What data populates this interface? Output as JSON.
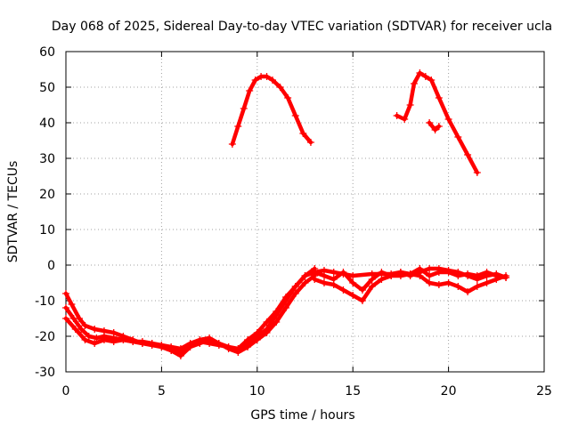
{
  "chart_data": {
    "type": "scatter",
    "title": "Day 068 of 2025, Sidereal Day-to-day VTEC variation (SDTVAR) for receiver ucla",
    "xlabel": "GPS time / hours",
    "ylabel": "SDTVAR / TECUs",
    "xlim": [
      0,
      25
    ],
    "ylim": [
      -30,
      60
    ],
    "xticks": [
      0,
      5,
      10,
      15,
      20,
      25
    ],
    "yticks": [
      -30,
      -20,
      -10,
      0,
      10,
      20,
      30,
      40,
      50,
      60
    ],
    "grid": true,
    "marker": "+",
    "color": "#ff0000",
    "series": [
      {
        "name": "track-a",
        "x": [
          0,
          0.3,
          0.7,
          1,
          1.5,
          2,
          2.5,
          3,
          3.5,
          4,
          4.5,
          5,
          5.5,
          6,
          6.5,
          7,
          7.5,
          8,
          8.5,
          9,
          9.5,
          10,
          10.5,
          11,
          11.5,
          12,
          12.5,
          13
        ],
        "y": [
          -8,
          -11,
          -15,
          -17,
          -18,
          -18.5,
          -19,
          -20,
          -21,
          -22,
          -22,
          -22.5,
          -23,
          -23.5,
          -22,
          -21,
          -20.5,
          -22,
          -23,
          -23.5,
          -21,
          -19,
          -16,
          -13,
          -9,
          -6,
          -3,
          -1
        ]
      },
      {
        "name": "track-b",
        "x": [
          0,
          0.4,
          0.8,
          1.2,
          1.6,
          2,
          2.5,
          3,
          3.5,
          4,
          4.5,
          5,
          5.5,
          6,
          6.5,
          7,
          7.5,
          8,
          8.5,
          9,
          9.5,
          10,
          10.5,
          11,
          11.5,
          12,
          12.5,
          13
        ],
        "y": [
          -12,
          -15,
          -18,
          -20,
          -20.5,
          -20,
          -20.5,
          -21,
          -21.5,
          -22,
          -22.5,
          -23,
          -24,
          -24.5,
          -22.5,
          -21.5,
          -22,
          -22.5,
          -23,
          -24,
          -22,
          -20,
          -18,
          -14,
          -10,
          -6,
          -3,
          -2
        ]
      },
      {
        "name": "track-c",
        "x": [
          0,
          0.5,
          1,
          1.5,
          2,
          2.5,
          3,
          3.5,
          4,
          4.5,
          5,
          5.5,
          6,
          6.5,
          7,
          7.5,
          8,
          8.5,
          9,
          9.5,
          10,
          10.5,
          11,
          11.5,
          12,
          12.5,
          13
        ],
        "y": [
          -15,
          -18,
          -21,
          -22,
          -21,
          -21.5,
          -21,
          -21.5,
          -21.5,
          -22,
          -23,
          -24,
          -25.5,
          -23,
          -22,
          -21,
          -22,
          -23.5,
          -24.5,
          -23,
          -21,
          -19,
          -16,
          -12,
          -8,
          -5,
          -3
        ]
      },
      {
        "name": "track-d",
        "x": [
          13,
          13.5,
          14,
          14.5,
          15,
          15.5,
          16,
          16.5,
          17,
          17.5,
          18,
          18.5,
          19,
          19.5,
          20,
          20.5,
          21,
          21.5,
          22,
          22.5,
          23
        ],
        "y": [
          -2,
          -3,
          -4,
          -2,
          -5,
          -7,
          -4,
          -2,
          -3,
          -2,
          -2.5,
          -1,
          -3,
          -2,
          -2,
          -3,
          -2.5,
          -3,
          -2,
          -3,
          -3.5
        ]
      },
      {
        "name": "track-e",
        "x": [
          13,
          13.5,
          14,
          14.5,
          15,
          15.5,
          16,
          16.5,
          17,
          17.5,
          18,
          18.5,
          19,
          19.5,
          20,
          20.5,
          21,
          21.5,
          22,
          22.5,
          23
        ],
        "y": [
          -4,
          -5,
          -5.5,
          -7,
          -8.5,
          -10,
          -6,
          -4,
          -3,
          -3,
          -2.5,
          -3,
          -5,
          -5.5,
          -5,
          -6,
          -7.5,
          -6,
          -5,
          -4,
          -3
        ]
      },
      {
        "name": "track-f",
        "x": [
          13,
          13.5,
          14,
          14.5,
          15,
          16,
          17,
          17.5,
          18,
          18.5,
          19,
          19.5,
          20,
          20.5,
          21,
          21.5,
          22,
          22.5,
          23
        ],
        "y": [
          -2,
          -1.5,
          -2,
          -2.5,
          -3,
          -2.5,
          -2.5,
          -2,
          -3,
          -2,
          -1,
          -1,
          -1.5,
          -2,
          -3,
          -4,
          -3,
          -2.5,
          -3.5
        ]
      },
      {
        "name": "arc-1",
        "x": [
          8.7,
          9,
          9.3,
          9.6,
          9.9,
          10.2,
          10.5,
          10.8,
          11.2,
          11.6,
          12,
          12.4,
          12.8
        ],
        "y": [
          34,
          39,
          44,
          49,
          52,
          53,
          53,
          52,
          50,
          47,
          42,
          37,
          34.5
        ]
      },
      {
        "name": "arc-2",
        "x": [
          17.3,
          17.7,
          18,
          18.2,
          18.5,
          18.8,
          19.1,
          19.5,
          20,
          20.5,
          21,
          21.5
        ],
        "y": [
          42,
          41,
          45,
          51,
          54,
          53,
          52,
          47,
          41,
          36,
          31,
          26
        ]
      },
      {
        "name": "arc-3",
        "x": [
          19,
          19.3,
          19.5
        ],
        "y": [
          40,
          38,
          39
        ]
      }
    ]
  }
}
